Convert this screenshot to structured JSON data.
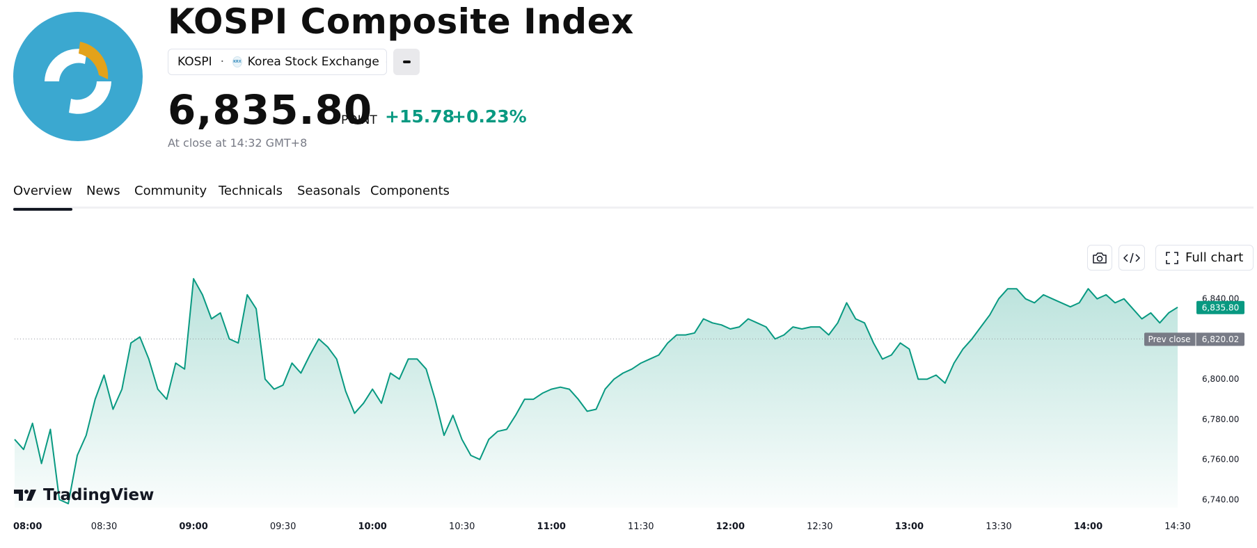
{
  "header": {
    "title": "KOSPI Composite Index",
    "symbol": "KOSPI",
    "exchange": "Korea Stock Exchange",
    "exchange_badge": "KRX",
    "price": "6,835.80",
    "unit": "POINT",
    "change": "+15.78",
    "change_percent": "+0.23%",
    "close_time": "At close at 14:32 GMT+8",
    "logo_icon": "kospi-logo-icon",
    "accent_color": "#089981",
    "logo_color": "#3ba8d0"
  },
  "tabs": [
    {
      "label": "Overview",
      "active": true
    },
    {
      "label": "News",
      "active": false
    },
    {
      "label": "Community",
      "active": false
    },
    {
      "label": "Technicals",
      "active": false
    },
    {
      "label": "Seasonals",
      "active": false
    },
    {
      "label": "Components",
      "active": false
    }
  ],
  "toolbar": {
    "snapshot_icon": "camera-icon",
    "embed_icon": "code-icon",
    "full_chart_label": "Full chart",
    "full_chart_icon": "expand-icon"
  },
  "branding": {
    "name": "TradingView"
  },
  "chart_data": {
    "type": "area",
    "title": "",
    "xlabel": "",
    "ylabel": "",
    "x_ticks": [
      "08:00",
      "08:30",
      "09:00",
      "09:30",
      "10:00",
      "10:30",
      "11:00",
      "11:30",
      "12:00",
      "12:30",
      "13:00",
      "13:30",
      "14:00",
      "14:30"
    ],
    "x_ticks_major": [
      "08:00",
      "09:00",
      "10:00",
      "11:00",
      "12:00",
      "13:00",
      "14:00"
    ],
    "y_ticks": [
      6740,
      6760,
      6780,
      6800,
      6820,
      6840
    ],
    "y_tick_labels": [
      "6,740.00",
      "6,760.00",
      "6,780.00",
      "6,800.00",
      "6,820.00",
      "6,840.00"
    ],
    "ylim": [
      6736,
      6852
    ],
    "xlim": [
      "08:00",
      "14:30"
    ],
    "last_value": 6835.8,
    "last_value_label": "6,835.80",
    "prev_close": 6820.02,
    "prev_close_label": "6,820.02",
    "prev_close_text": "Prev close",
    "line_color": "#089981",
    "grid": false,
    "series": [
      {
        "x": [
          "08:00",
          "08:03",
          "08:06",
          "08:09",
          "08:12",
          "08:15",
          "08:18",
          "08:21",
          "08:24",
          "08:27",
          "08:30",
          "08:33",
          "08:36",
          "08:39",
          "08:42",
          "08:45",
          "08:48",
          "08:51",
          "08:54",
          "08:57",
          "09:00",
          "09:03",
          "09:06",
          "09:09",
          "09:12",
          "09:15",
          "09:18",
          "09:21",
          "09:24",
          "09:27",
          "09:30",
          "09:33",
          "09:36",
          "09:39",
          "09:42",
          "09:45",
          "09:48",
          "09:51",
          "09:54",
          "09:57",
          "10:00",
          "10:03",
          "10:06",
          "10:09",
          "10:12",
          "10:15",
          "10:18",
          "10:21",
          "10:24",
          "10:27",
          "10:30",
          "10:33",
          "10:36",
          "10:39",
          "10:42",
          "10:45",
          "10:48",
          "10:51",
          "10:54",
          "10:57",
          "11:00",
          "11:03",
          "11:06",
          "11:09",
          "11:12",
          "11:15",
          "11:18",
          "11:21",
          "11:24",
          "11:27",
          "11:30",
          "11:33",
          "11:36",
          "11:39",
          "11:42",
          "11:45",
          "11:48",
          "11:51",
          "11:54",
          "11:57",
          "12:00",
          "12:03",
          "12:06",
          "12:09",
          "12:12",
          "12:15",
          "12:18",
          "12:21",
          "12:24",
          "12:27",
          "12:30",
          "12:33",
          "12:36",
          "12:39",
          "12:42",
          "12:45",
          "12:48",
          "12:51",
          "12:54",
          "12:57",
          "13:00",
          "13:03",
          "13:06",
          "13:09",
          "13:12",
          "13:15",
          "13:18",
          "13:21",
          "13:24",
          "13:27",
          "13:30",
          "13:33",
          "13:36",
          "13:39",
          "13:42",
          "13:45",
          "13:48",
          "13:51",
          "13:54",
          "13:57",
          "14:00",
          "14:03",
          "14:06",
          "14:09",
          "14:12",
          "14:15",
          "14:18",
          "14:21",
          "14:24",
          "14:27",
          "14:30"
        ],
        "values": [
          6770,
          6765,
          6778,
          6758,
          6775,
          6740,
          6738,
          6762,
          6772,
          6790,
          6802,
          6785,
          6795,
          6818,
          6821,
          6810,
          6795,
          6790,
          6808,
          6805,
          6850,
          6842,
          6830,
          6833,
          6820,
          6818,
          6842,
          6835,
          6800,
          6795,
          6797,
          6808,
          6803,
          6812,
          6820,
          6816,
          6810,
          6794,
          6783,
          6788,
          6795,
          6788,
          6803,
          6800,
          6810,
          6810,
          6805,
          6790,
          6772,
          6782,
          6770,
          6762,
          6760,
          6770,
          6774,
          6775,
          6782,
          6790,
          6790,
          6793,
          6795,
          6796,
          6795,
          6790,
          6784,
          6785,
          6795,
          6800,
          6803,
          6805,
          6808,
          6810,
          6812,
          6818,
          6822,
          6822,
          6823,
          6830,
          6828,
          6827,
          6825,
          6826,
          6830,
          6828,
          6826,
          6820,
          6822,
          6826,
          6825,
          6826,
          6826,
          6822,
          6828,
          6838,
          6830,
          6828,
          6818,
          6810,
          6812,
          6818,
          6815,
          6800,
          6800,
          6802,
          6798,
          6808,
          6815,
          6820,
          6826,
          6832,
          6840,
          6845,
          6845,
          6840,
          6838,
          6842,
          6840,
          6838,
          6836,
          6838,
          6845,
          6840,
          6842,
          6838,
          6840,
          6835,
          6830,
          6833,
          6828,
          6833,
          6835.8
        ]
      }
    ]
  }
}
